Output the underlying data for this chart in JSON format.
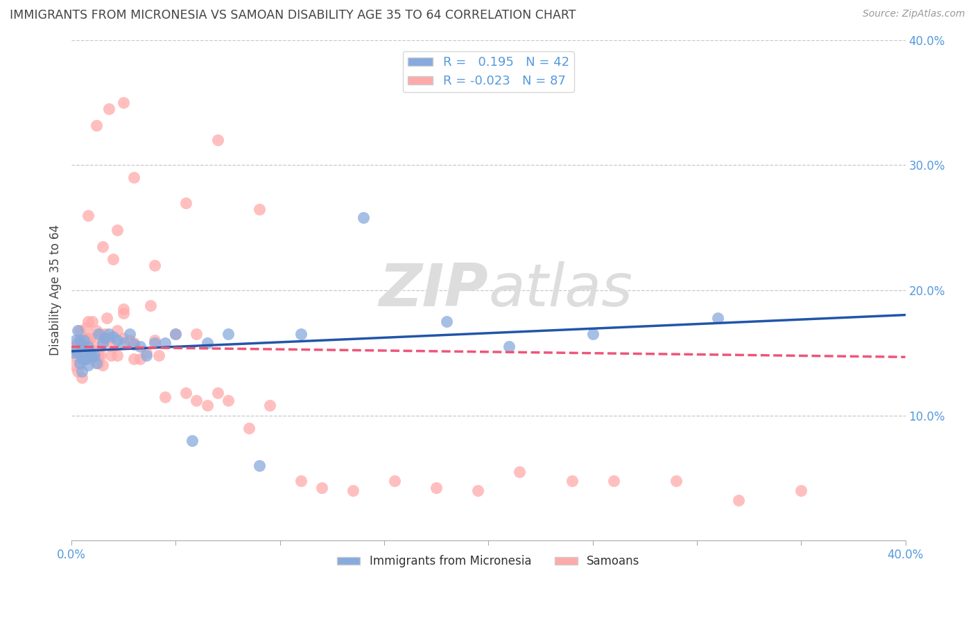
{
  "title": "IMMIGRANTS FROM MICRONESIA VS SAMOAN DISABILITY AGE 35 TO 64 CORRELATION CHART",
  "source": "Source: ZipAtlas.com",
  "ylabel": "Disability Age 35 to 64",
  "xlim": [
    0,
    0.4
  ],
  "ylim": [
    0,
    0.4
  ],
  "right_yticks": [
    0.1,
    0.2,
    0.3,
    0.4
  ],
  "right_ytick_labels": [
    "10.0%",
    "20.0%",
    "30.0%",
    "40.0%"
  ],
  "bottom_xtick_labels": [
    "0.0%",
    "",
    "",
    "",
    "",
    "",
    "",
    "",
    "",
    "40.0%"
  ],
  "legend1_label": "Immigrants from Micronesia",
  "legend2_label": "Samoans",
  "R1": 0.195,
  "N1": 42,
  "R2": -0.023,
  "N2": 87,
  "blue_color": "#88AADD",
  "pink_color": "#FFAAAA",
  "blue_line_color": "#2255AA",
  "pink_line_color": "#EE5577",
  "background_color": "#FFFFFF",
  "grid_color": "#C8C8C8",
  "title_color": "#444444",
  "axis_color": "#5599DD",
  "watermark_color": "#DDDDDD",
  "blue_x": [
    0.001,
    0.002,
    0.003,
    0.003,
    0.004,
    0.004,
    0.005,
    0.005,
    0.005,
    0.006,
    0.006,
    0.007,
    0.008,
    0.008,
    0.009,
    0.01,
    0.011,
    0.012,
    0.013,
    0.015,
    0.016,
    0.018,
    0.02,
    0.022,
    0.025,
    0.028,
    0.03,
    0.033,
    0.036,
    0.04,
    0.045,
    0.05,
    0.058,
    0.065,
    0.075,
    0.09,
    0.11,
    0.14,
    0.18,
    0.21,
    0.25,
    0.31
  ],
  "blue_y": [
    0.15,
    0.16,
    0.168,
    0.15,
    0.142,
    0.16,
    0.155,
    0.145,
    0.135,
    0.15,
    0.16,
    0.145,
    0.155,
    0.14,
    0.15,
    0.147,
    0.148,
    0.142,
    0.165,
    0.158,
    0.162,
    0.165,
    0.163,
    0.16,
    0.158,
    0.165,
    0.157,
    0.155,
    0.148,
    0.158,
    0.158,
    0.165,
    0.08,
    0.158,
    0.165,
    0.06,
    0.165,
    0.258,
    0.175,
    0.155,
    0.165,
    0.178
  ],
  "pink_x": [
    0.001,
    0.001,
    0.002,
    0.002,
    0.003,
    0.003,
    0.003,
    0.004,
    0.004,
    0.004,
    0.005,
    0.005,
    0.005,
    0.006,
    0.006,
    0.007,
    0.007,
    0.007,
    0.008,
    0.008,
    0.008,
    0.009,
    0.009,
    0.01,
    0.01,
    0.01,
    0.011,
    0.012,
    0.012,
    0.013,
    0.013,
    0.014,
    0.014,
    0.015,
    0.015,
    0.016,
    0.017,
    0.018,
    0.019,
    0.02,
    0.022,
    0.022,
    0.025,
    0.025,
    0.028,
    0.03,
    0.033,
    0.036,
    0.04,
    0.042,
    0.045,
    0.05,
    0.055,
    0.06,
    0.065,
    0.07,
    0.075,
    0.085,
    0.095,
    0.11,
    0.12,
    0.135,
    0.155,
    0.175,
    0.195,
    0.215,
    0.24,
    0.26,
    0.29,
    0.32,
    0.35,
    0.04,
    0.055,
    0.07,
    0.09,
    0.06,
    0.025,
    0.03,
    0.018,
    0.015,
    0.02,
    0.012,
    0.008,
    0.025,
    0.038,
    0.022,
    0.03
  ],
  "pink_y": [
    0.155,
    0.14,
    0.155,
    0.148,
    0.152,
    0.158,
    0.135,
    0.155,
    0.142,
    0.168,
    0.148,
    0.158,
    0.13,
    0.148,
    0.162,
    0.145,
    0.158,
    0.17,
    0.148,
    0.162,
    0.175,
    0.152,
    0.162,
    0.148,
    0.158,
    0.175,
    0.15,
    0.152,
    0.168,
    0.148,
    0.142,
    0.165,
    0.148,
    0.158,
    0.14,
    0.165,
    0.178,
    0.162,
    0.148,
    0.155,
    0.168,
    0.148,
    0.185,
    0.162,
    0.16,
    0.158,
    0.145,
    0.15,
    0.16,
    0.148,
    0.115,
    0.165,
    0.118,
    0.112,
    0.108,
    0.118,
    0.112,
    0.09,
    0.108,
    0.048,
    0.042,
    0.04,
    0.048,
    0.042,
    0.04,
    0.055,
    0.048,
    0.048,
    0.048,
    0.032,
    0.04,
    0.22,
    0.27,
    0.32,
    0.265,
    0.165,
    0.35,
    0.29,
    0.345,
    0.235,
    0.225,
    0.332,
    0.26,
    0.182,
    0.188,
    0.248,
    0.145
  ]
}
